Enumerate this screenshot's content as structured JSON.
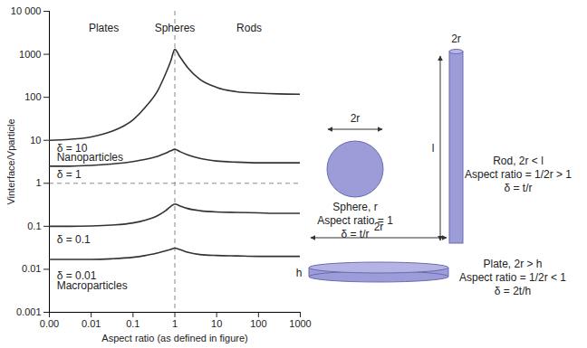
{
  "chart_data": {
    "type": "line",
    "log": true,
    "x": [
      0.001,
      0.003,
      0.01,
      0.03,
      0.1,
      0.2,
      0.4,
      0.6,
      0.8,
      1,
      1.3,
      2,
      4,
      10,
      30,
      100,
      300,
      1000
    ],
    "series": [
      {
        "name": "δ = 10",
        "color": "#333333",
        "values": [
          10,
          10.5,
          12,
          16,
          30,
          60,
          150,
          350,
          700,
          1300,
          900,
          500,
          260,
          170,
          135,
          125,
          120,
          118
        ]
      },
      {
        "name": "δ = 1",
        "color": "#333333",
        "values": [
          2.5,
          2.5,
          2.6,
          2.8,
          3.2,
          3.6,
          4.3,
          5.0,
          5.7,
          6.2,
          5.5,
          4.6,
          3.8,
          3.3,
          3.1,
          3.0,
          3.0,
          3.0
        ]
      },
      {
        "name": "δ = 0.1",
        "color": "#333333",
        "values": [
          0.1,
          0.1,
          0.102,
          0.107,
          0.12,
          0.14,
          0.18,
          0.23,
          0.29,
          0.33,
          0.3,
          0.26,
          0.23,
          0.215,
          0.21,
          0.205,
          0.2,
          0.2
        ]
      },
      {
        "name": "δ = 0.01",
        "color": "#333333",
        "values": [
          0.017,
          0.017,
          0.017,
          0.0175,
          0.019,
          0.021,
          0.024,
          0.027,
          0.029,
          0.031,
          0.029,
          0.025,
          0.022,
          0.021,
          0.0205,
          0.02,
          0.02,
          0.02
        ]
      }
    ],
    "xlabel": "Aspect ratio (as defined in figure)",
    "ylabel": "Vinterface/Vparticle",
    "xlim": [
      0.001,
      1000
    ],
    "xticks": [
      {
        "value": 0.001,
        "label": "0.00"
      },
      0.01,
      0.1,
      1,
      10,
      100,
      1000
    ],
    "ylim": [
      0.001,
      10000
    ],
    "yticks": [
      0.001,
      0.01,
      0.1,
      1,
      10,
      100,
      1000,
      {
        "value": 10000,
        "label": "10 000"
      }
    ],
    "vlines": [
      1
    ],
    "hlines": [
      1
    ],
    "region_labels": [
      {
        "text": "Plates",
        "x": 0.02,
        "y": 4000
      },
      {
        "text": "Spheres",
        "x": 1,
        "y": 4000
      },
      {
        "text": "Rods",
        "x": 60,
        "y": 4000
      }
    ],
    "annotations": [
      {
        "text": "δ = 10",
        "x": 0.0015,
        "y": 6.5
      },
      {
        "text": "Nanoparticles",
        "x": 0.0015,
        "y": 4.0
      },
      {
        "text": "δ = 1",
        "x": 0.0015,
        "y": 1.6
      },
      {
        "text": "δ = 0.1",
        "x": 0.0015,
        "y": 0.05
      },
      {
        "text": "δ = 0.01",
        "x": 0.0015,
        "y": 0.007
      },
      {
        "text": "Macroparticles",
        "x": 0.0015,
        "y": 0.0042
      }
    ]
  },
  "diagram": {
    "sphere": {
      "dimension": "2r",
      "lines": [
        "Sphere, r",
        "Aspect ratio = 1",
        "δ = t/r"
      ]
    },
    "rod": {
      "width": "2r",
      "length": "l",
      "lines": [
        "Rod, 2r < l",
        "Aspect ratio = 1/2r > 1",
        "δ = t/r"
      ]
    },
    "plate": {
      "width": "2r",
      "thickness": "h",
      "lines": [
        "Plate, 2r > h",
        "Aspect ratio = 1/2r < 1",
        "δ = 2t/h"
      ]
    }
  }
}
